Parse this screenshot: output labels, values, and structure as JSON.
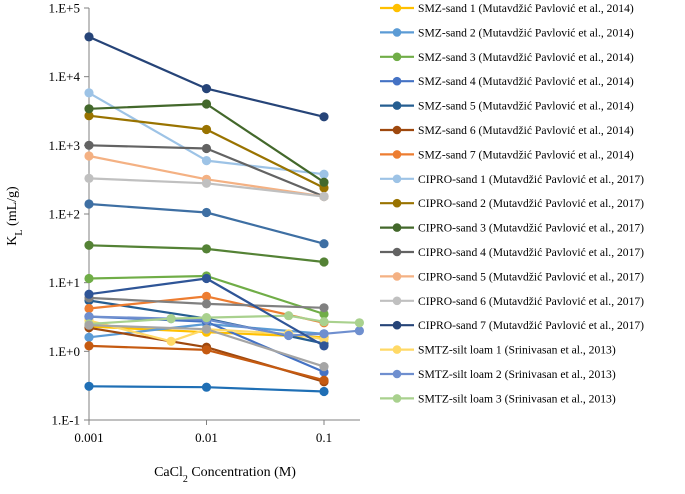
{
  "chart_data": {
    "type": "line",
    "title": "",
    "xlabel": {
      "pre": "CaCl",
      "sub": "2",
      "post": " Concentration (M)"
    },
    "ylabel": {
      "pre": "K",
      "sub": "L",
      "post": " (mL/g)"
    },
    "x_scale": "log",
    "y_scale": "log",
    "xlim": [
      0.001,
      0.2
    ],
    "ylim": [
      0.1,
      100000
    ],
    "x_ticks": [
      0.001,
      0.01,
      0.1
    ],
    "x_tick_labels": [
      "0.001",
      "0.01",
      "0.1"
    ],
    "y_ticks": [
      0.1,
      1,
      10,
      100,
      1000,
      10000,
      100000
    ],
    "y_tick_labels": [
      "1.E-1",
      "1.E+0",
      "1.E+1",
      "1.E+2",
      "1.E+3",
      "1.E+4",
      "1.E+5"
    ],
    "gridlines": false,
    "legend_position": "right",
    "series": [
      {
        "name": "SMZ-sand 1 (Mutavdžić Pavlović et al., 2014)",
        "color": "#FFC000",
        "x": [
          0.001,
          0.01,
          0.1
        ],
        "y": [
          2.3,
          1.9,
          1.6
        ]
      },
      {
        "name": "SMZ-sand 2 (Mutavdžić Pavlović et al., 2014)",
        "color": "#5B9BD5",
        "x": [
          0.001,
          0.01,
          0.1
        ],
        "y": [
          1.6,
          2.5,
          1.8
        ]
      },
      {
        "name": "SMZ-sand 3 (Mutavdžić Pavlović et al., 2014)",
        "color": "#70AD47",
        "x": [
          0.001,
          0.01,
          0.1
        ],
        "y": [
          11.5,
          12.5,
          3.5
        ]
      },
      {
        "name": "SMZ-sand 4 (Mutavdžić Pavlović et al., 2014)",
        "color": "#4472C4",
        "x": [
          0.001,
          0.01,
          0.1
        ],
        "y": [
          3.2,
          2.7,
          0.5
        ]
      },
      {
        "name": "SMZ-sand 5 (Mutavdžić Pavlović et al., 2014)",
        "color": "#255E91",
        "x": [
          0.001,
          0.01,
          0.1
        ],
        "y": [
          5.5,
          3.0,
          1.3
        ]
      },
      {
        "name": "SMZ-sand 6 (Mutavdžić Pavlović et al., 2014)",
        "color": "#9E480E",
        "x": [
          0.001,
          0.01,
          0.1
        ],
        "y": [
          2.2,
          1.15,
          0.36
        ]
      },
      {
        "name": "SMZ-sand 7 (Mutavdžić Pavlović et al., 2014)",
        "color": "#ED7D31",
        "x": [
          0.001,
          0.01,
          0.1
        ],
        "y": [
          4.2,
          6.3,
          2.6
        ]
      },
      {
        "name": "CIPRO-sand 1 (Mutavdžić Pavlović et al., 2017)",
        "color": "#9DC3E6",
        "x": [
          0.001,
          0.01,
          0.1
        ],
        "y": [
          5800,
          600,
          380
        ]
      },
      {
        "name": "CIPRO-sand 2 (Mutavdžić Pavlović et al., 2017)",
        "color": "#997300",
        "x": [
          0.001,
          0.01,
          0.1
        ],
        "y": [
          2700,
          1700,
          240
        ]
      },
      {
        "name": "CIPRO-sand 3 (Mutavdžić Pavlović et al., 2017)",
        "color": "#43682B",
        "x": [
          0.001,
          0.01,
          0.1
        ],
        "y": [
          3400,
          4000,
          290
        ]
      },
      {
        "name": "CIPRO-sand 4 (Mutavdžić Pavlović et al., 2017)",
        "color": "#636363",
        "x": [
          0.001,
          0.01,
          0.1
        ],
        "y": [
          1000,
          900,
          180
        ]
      },
      {
        "name": "CIPRO-sand 5 (Mutavdžić Pavlović et al., 2017)",
        "color": "#F4B183",
        "x": [
          0.001,
          0.01,
          0.1
        ],
        "y": [
          700,
          320,
          180
        ]
      },
      {
        "name": "CIPRO-sand 6 (Mutavdžić Pavlović et al., 2017)",
        "color": "#C0C0C0",
        "x": [
          0.001,
          0.01,
          0.1
        ],
        "y": [
          330,
          280,
          180
        ]
      },
      {
        "name": "CIPRO-sand 7 (Mutavdžić Pavlović et al., 2017)",
        "color": "#264478",
        "x": [
          0.001,
          0.01,
          0.1
        ],
        "y": [
          38000,
          6700,
          2600
        ]
      },
      {
        "name": "SMTZ-silt loam 1 (Srinivasan et al., 2013)",
        "color": "#FFD966",
        "x": [
          0.001,
          0.005,
          0.01,
          0.05,
          0.1
        ],
        "y": [
          2.8,
          1.4,
          2.1,
          1.8,
          1.5
        ]
      },
      {
        "name": "SMTZ-silt loam 2 (Srinivasan et al., 2013)",
        "color": "#6F8FCF",
        "x": [
          0.001,
          0.005,
          0.01,
          0.05,
          0.1,
          0.2
        ],
        "y": [
          3.2,
          3.0,
          2.9,
          1.7,
          1.8,
          2.0
        ]
      },
      {
        "name": "SMTZ-silt loam 3 (Srinivasan et al., 2013)",
        "color": "#A9D18E",
        "x": [
          0.001,
          0.005,
          0.01,
          0.05,
          0.1,
          0.2
        ],
        "y": [
          2.5,
          3.0,
          3.1,
          3.3,
          2.7,
          2.6
        ]
      },
      {
        "name": "",
        "color": "#1F6FB5",
        "x": [
          0.001,
          0.01,
          0.1
        ],
        "y": [
          0.31,
          0.3,
          0.26
        ]
      },
      {
        "name": "",
        "color": "#C55A11",
        "x": [
          0.001,
          0.01,
          0.1
        ],
        "y": [
          1.2,
          1.05,
          0.38
        ]
      },
      {
        "name": "",
        "color": "#808080",
        "x": [
          0.001,
          0.01,
          0.1
        ],
        "y": [
          6.0,
          4.9,
          4.3
        ]
      },
      {
        "name": "",
        "color": "#A5A5A5",
        "x": [
          0.001,
          0.01,
          0.1
        ],
        "y": [
          2.4,
          2.1,
          0.6
        ]
      },
      {
        "name": "",
        "color": "#2F5597",
        "x": [
          0.001,
          0.01,
          0.1
        ],
        "y": [
          6.8,
          11.5,
          1.2
        ]
      },
      {
        "name": "",
        "color": "#3E6FA3",
        "x": [
          0.001,
          0.01,
          0.1
        ],
        "y": [
          140,
          105,
          37
        ]
      },
      {
        "name": "",
        "color": "#548235",
        "x": [
          0.001,
          0.01,
          0.1
        ],
        "y": [
          35,
          31,
          20
        ]
      }
    ]
  }
}
